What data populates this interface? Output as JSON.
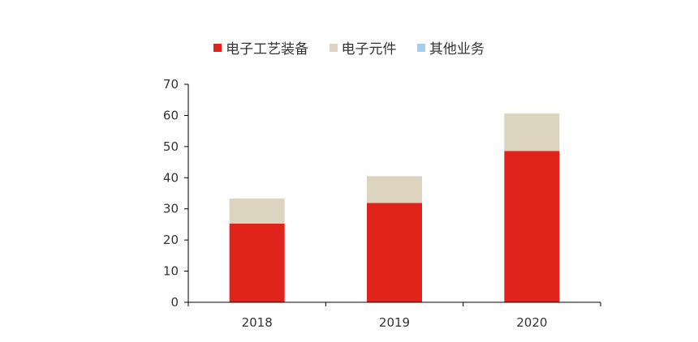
{
  "chart_data": {
    "type": "bar",
    "stacked": true,
    "categories": [
      "2018",
      "2019",
      "2020"
    ],
    "series": [
      {
        "name": "电子工艺装备",
        "values": [
          25.3,
          31.9,
          48.6
        ],
        "color": "#E0231B"
      },
      {
        "name": "电子元件",
        "values": [
          8.0,
          8.6,
          12.0
        ],
        "color": "#DDD4BF"
      },
      {
        "name": "其他业务",
        "values": [
          0.0,
          0.0,
          0.0
        ],
        "color": "#A6CCF2"
      }
    ],
    "yticks": [
      "0",
      "10",
      "20",
      "30",
      "40",
      "50",
      "60",
      "70"
    ],
    "ylim": [
      0,
      70
    ],
    "grid": false,
    "legend": "top-center"
  }
}
